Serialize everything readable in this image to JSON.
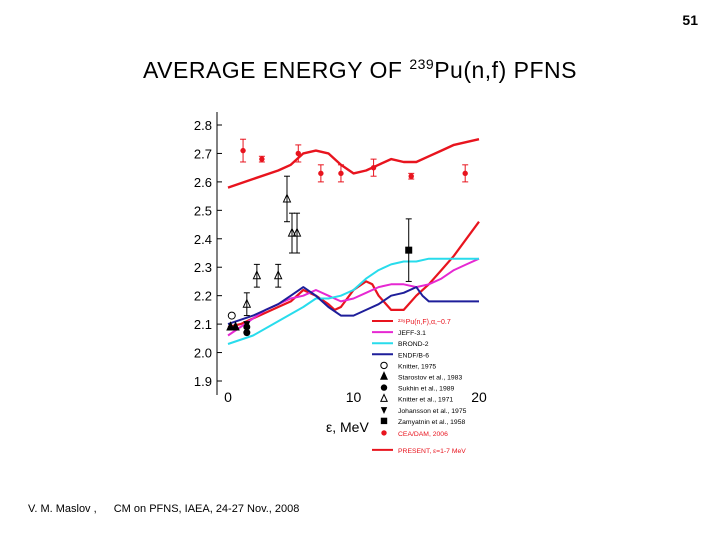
{
  "page_number": "51",
  "title": {
    "prefix": "AVERAGE ENERGY OF ",
    "superscript": "239",
    "suffix": "Pu(n,f) PFNS"
  },
  "footer": {
    "author": "V. M. Maslov ,",
    "event": "CM on PFNS, IAEA, 24-27 Nov., 2008"
  },
  "colors": {
    "red": "#e8141e",
    "magenta": "#e628d2",
    "cyan": "#28dcec",
    "navy": "#1e1e9a",
    "black": "#000000"
  },
  "chart_data": {
    "type": "line",
    "title": "",
    "xlabel": "ε, MeV",
    "ylabel": "",
    "xlim": [
      0,
      20
    ],
    "ylim": [
      1.9,
      2.8
    ],
    "xticks": [
      0,
      10,
      20
    ],
    "yticks": [
      1.9,
      2.0,
      2.1,
      2.2,
      2.3,
      2.4,
      2.5,
      2.6,
      2.7,
      2.8
    ],
    "grid": false,
    "legend_position": "bottom-right",
    "series": [
      {
        "key": "upper",
        "name": "",
        "color": "#e8141e",
        "width": 2.4,
        "x": [
          0,
          2,
          4,
          5,
          6,
          7,
          8,
          9,
          10,
          11,
          12,
          13,
          14,
          15,
          16,
          17,
          18,
          19,
          20
        ],
        "y": [
          2.58,
          2.61,
          2.64,
          2.66,
          2.7,
          2.71,
          2.7,
          2.66,
          2.63,
          2.64,
          2.66,
          2.68,
          2.67,
          2.67,
          2.69,
          2.71,
          2.73,
          2.74,
          2.75
        ]
      },
      {
        "key": "pu_fit",
        "name": "²³⁹Pu(n,F),α,~0.7",
        "color": "#e8141e",
        "width": 2.2,
        "x": [
          0,
          1,
          2,
          3,
          4,
          5,
          6,
          7,
          8,
          8.5,
          9,
          10,
          11,
          11.5,
          12,
          13,
          14,
          15,
          16,
          17,
          18,
          19,
          20
        ],
        "y": [
          2.09,
          2.1,
          2.12,
          2.14,
          2.16,
          2.18,
          2.22,
          2.2,
          2.17,
          2.15,
          2.16,
          2.22,
          2.25,
          2.24,
          2.2,
          2.15,
          2.15,
          2.2,
          2.24,
          2.29,
          2.34,
          2.4,
          2.46
        ]
      },
      {
        "key": "jeff",
        "name": "JEFF-3.1",
        "color": "#e628d2",
        "width": 2,
        "x": [
          0,
          1,
          2,
          3,
          4,
          5,
          6,
          7,
          8,
          9,
          10,
          11,
          12,
          13,
          14,
          15,
          16,
          17,
          18,
          19,
          20
        ],
        "y": [
          2.06,
          2.09,
          2.12,
          2.15,
          2.17,
          2.19,
          2.2,
          2.22,
          2.2,
          2.18,
          2.19,
          2.21,
          2.23,
          2.24,
          2.24,
          2.23,
          2.24,
          2.26,
          2.29,
          2.31,
          2.33
        ]
      },
      {
        "key": "brond",
        "name": "BROND-2",
        "color": "#28dcec",
        "width": 2,
        "x": [
          0,
          2,
          4,
          6,
          7,
          8,
          9,
          10,
          11,
          12,
          13,
          14,
          15,
          16,
          17,
          18,
          19,
          20
        ],
        "y": [
          2.03,
          2.06,
          2.11,
          2.16,
          2.19,
          2.19,
          2.2,
          2.22,
          2.26,
          2.29,
          2.31,
          2.32,
          2.32,
          2.33,
          2.33,
          2.33,
          2.33,
          2.33
        ]
      },
      {
        "key": "endf",
        "name": "ENDF/B-6",
        "color": "#1e1e9a",
        "width": 2,
        "x": [
          0,
          2,
          4,
          5,
          6,
          7,
          8,
          9,
          10,
          11,
          12,
          13,
          14,
          15,
          15.5,
          16,
          17,
          18,
          19,
          20
        ],
        "y": [
          2.1,
          2.13,
          2.17,
          2.2,
          2.23,
          2.2,
          2.16,
          2.13,
          2.13,
          2.15,
          2.17,
          2.2,
          2.21,
          2.23,
          2.2,
          2.18,
          2.18,
          2.18,
          2.18,
          2.18
        ]
      }
    ],
    "markers": [
      {
        "key": "knitter75",
        "name": "Knitter, 1975",
        "shape": "circle-open",
        "color": "#000000",
        "points": [
          [
            0.3,
            2.13
          ]
        ],
        "err": [
          0
        ]
      },
      {
        "key": "starostov",
        "name": "Starostov et al., 1983",
        "shape": "triangle-filled",
        "color": "#000000",
        "points": [
          [
            0.2,
            2.09
          ],
          [
            0.6,
            2.09
          ]
        ],
        "err": [
          0,
          0
        ]
      },
      {
        "key": "sukhin",
        "name": "Sukhin et al., 1989",
        "shape": "circle-filled",
        "color": "#000000",
        "points": [
          [
            1.5,
            2.07
          ],
          [
            1.5,
            2.09
          ]
        ],
        "err": [
          0,
          0
        ]
      },
      {
        "key": "knitter71",
        "name": "Knitter et al., 1971",
        "shape": "triangle-open",
        "color": "#000000",
        "points": [
          [
            1.5,
            2.17
          ],
          [
            2.3,
            2.27
          ],
          [
            4.0,
            2.27
          ],
          [
            4.7,
            2.54
          ],
          [
            5.1,
            2.42
          ],
          [
            5.5,
            2.42
          ]
        ],
        "err": [
          0.04,
          0.04,
          0.04,
          0.08,
          0.07,
          0.07
        ]
      },
      {
        "key": "johansson",
        "name": "Johansson et al., 1975",
        "shape": "triangle-down-filled",
        "color": "#000000",
        "points": [
          [
            1.5,
            2.1
          ]
        ],
        "err": [
          0
        ]
      },
      {
        "key": "zamyatnin",
        "name": "Zamyatnin et al., 1958",
        "shape": "square-filled",
        "color": "#000000",
        "points": [
          [
            14.4,
            2.36
          ]
        ],
        "err": [
          0.11
        ]
      },
      {
        "key": "cea",
        "name": "CEA/DAM, 2006",
        "shape": "dot",
        "color": "#e8141e",
        "points": [
          [
            1.2,
            2.71
          ],
          [
            2.7,
            2.68
          ],
          [
            5.6,
            2.7
          ],
          [
            7.4,
            2.63
          ],
          [
            9.0,
            2.63
          ],
          [
            11.6,
            2.65
          ],
          [
            14.6,
            2.62
          ],
          [
            18.9,
            2.63
          ]
        ],
        "err": [
          0.04,
          0.01,
          0.03,
          0.03,
          0.03,
          0.03,
          0.01,
          0.03
        ]
      }
    ],
    "legend_entries": [
      {
        "label": "²³⁹Pu(n,F),α,~0.7",
        "sym": "line",
        "color": "#e8141e"
      },
      {
        "label": "JEFF-3.1",
        "sym": "line",
        "color": "#e628d2"
      },
      {
        "label": "BROND-2",
        "sym": "line",
        "color": "#28dcec"
      },
      {
        "label": "ENDF/B-6",
        "sym": "line",
        "color": "#1e1e9a"
      },
      {
        "label": "Knitter, 1975",
        "sym": "circle-open",
        "color": "#000000"
      },
      {
        "label": "Starostov et al., 1983",
        "sym": "triangle-filled",
        "color": "#000000"
      },
      {
        "label": "Sukhin et al., 1989",
        "sym": "circle-filled",
        "color": "#000000"
      },
      {
        "label": "Knitter et al., 1971",
        "sym": "triangle-open",
        "color": "#000000"
      },
      {
        "label": "Johansson et al., 1975",
        "sym": "triangle-down-filled",
        "color": "#000000"
      },
      {
        "label": "Zamyatnin et al., 1958",
        "sym": "square-filled",
        "color": "#000000"
      },
      {
        "label": "CEA/DAM, 2006",
        "sym": "dot",
        "color": "#e8141e"
      },
      {
        "label": "PRESENT, ε=1-7 MeV",
        "sym": "line",
        "color": "#e8141e"
      }
    ]
  }
}
